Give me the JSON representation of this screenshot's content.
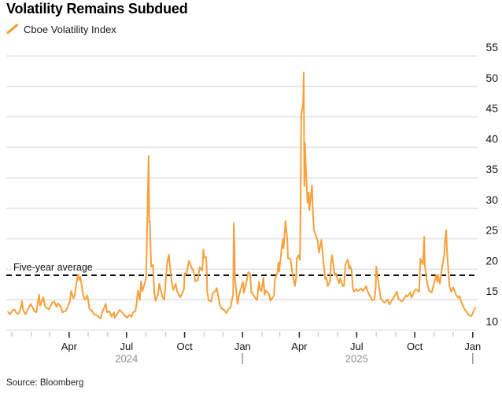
{
  "header": {
    "title": "Volatility Remains Subdued",
    "legend_label": "Cboe Volatility Index"
  },
  "footer": {
    "source": "Source: Bloomberg"
  },
  "colors": {
    "line": "#f7a03c",
    "grid": "#e5e5e5",
    "axis_text": "#161616",
    "year_text": "#8f8f8f",
    "tick_minor": "#cbcbcb",
    "tick_major": "#333333",
    "separator": "#9a9a9a",
    "average_line": "#111111"
  },
  "chart_data": {
    "type": "line",
    "title": "Volatility Remains Subdued",
    "legend": [
      "Cboe Volatility Index"
    ],
    "legend_position": "top-left",
    "y_axis_side": "right",
    "grid": "horizontal",
    "ylim": [
      10,
      55
    ],
    "yticks": [
      10,
      15,
      20,
      25,
      30,
      35,
      40,
      45,
      50,
      55
    ],
    "xticks": [
      {
        "date": "2024-04-01",
        "label": "Apr"
      },
      {
        "date": "2024-07-01",
        "label": "Jul"
      },
      {
        "date": "2024-10-01",
        "label": "Oct"
      },
      {
        "date": "2025-01-01",
        "label": "Jan"
      },
      {
        "date": "2025-04-01",
        "label": "Apr"
      },
      {
        "date": "2025-07-01",
        "label": "Jul"
      },
      {
        "date": "2025-10-01",
        "label": "Oct"
      },
      {
        "date": "2026-01-01",
        "label": "Jan"
      }
    ],
    "year_labels": [
      {
        "date": "2024-07-01",
        "label": "2024"
      },
      {
        "date": "2025-07-01",
        "label": "2025"
      }
    ],
    "year_separators": [
      "2025-01-01",
      "2026-01-01"
    ],
    "average_line": {
      "label": "Five-year average",
      "value": 19
    },
    "series": [
      {
        "name": "Cboe Volatility Index",
        "color": "#f7a03c",
        "points": [
          [
            "2023-12-26",
            13.0
          ],
          [
            "2023-12-29",
            12.6
          ],
          [
            "2024-01-02",
            13.2
          ],
          [
            "2024-01-05",
            13.4
          ],
          [
            "2024-01-09",
            12.7
          ],
          [
            "2024-01-12",
            12.7
          ],
          [
            "2024-01-16",
            13.9
          ],
          [
            "2024-01-17",
            14.8
          ],
          [
            "2024-01-19",
            13.3
          ],
          [
            "2024-01-23",
            12.6
          ],
          [
            "2024-01-26",
            13.3
          ],
          [
            "2024-01-31",
            14.3
          ],
          [
            "2024-02-02",
            13.9
          ],
          [
            "2024-02-06",
            13.1
          ],
          [
            "2024-02-09",
            12.9
          ],
          [
            "2024-02-13",
            15.8
          ],
          [
            "2024-02-15",
            14.0
          ],
          [
            "2024-02-20",
            15.4
          ],
          [
            "2024-02-23",
            13.8
          ],
          [
            "2024-02-29",
            13.4
          ],
          [
            "2024-03-05",
            14.5
          ],
          [
            "2024-03-08",
            14.7
          ],
          [
            "2024-03-12",
            13.8
          ],
          [
            "2024-03-14",
            14.4
          ],
          [
            "2024-03-19",
            13.8
          ],
          [
            "2024-03-21",
            12.9
          ],
          [
            "2024-03-27",
            13.2
          ],
          [
            "2024-04-02",
            14.6
          ],
          [
            "2024-04-04",
            16.4
          ],
          [
            "2024-04-08",
            15.2
          ],
          [
            "2024-04-10",
            15.8
          ],
          [
            "2024-04-12",
            17.3
          ],
          [
            "2024-04-15",
            19.2
          ],
          [
            "2024-04-17",
            18.2
          ],
          [
            "2024-04-19",
            18.7
          ],
          [
            "2024-04-23",
            15.7
          ],
          [
            "2024-04-26",
            15.0
          ],
          [
            "2024-04-30",
            15.7
          ],
          [
            "2024-05-03",
            13.5
          ],
          [
            "2024-05-07",
            13.2
          ],
          [
            "2024-05-10",
            12.6
          ],
          [
            "2024-05-15",
            12.4
          ],
          [
            "2024-05-21",
            11.9
          ],
          [
            "2024-05-23",
            12.8
          ],
          [
            "2024-05-29",
            14.3
          ],
          [
            "2024-05-31",
            12.9
          ],
          [
            "2024-06-04",
            13.1
          ],
          [
            "2024-06-07",
            12.2
          ],
          [
            "2024-06-11",
            12.9
          ],
          [
            "2024-06-12",
            12.0
          ],
          [
            "2024-06-17",
            12.8
          ],
          [
            "2024-06-20",
            13.3
          ],
          [
            "2024-06-25",
            12.8
          ],
          [
            "2024-06-28",
            12.4
          ],
          [
            "2024-07-02",
            12.0
          ],
          [
            "2024-07-05",
            12.5
          ],
          [
            "2024-07-09",
            12.2
          ],
          [
            "2024-07-11",
            12.9
          ],
          [
            "2024-07-15",
            13.1
          ],
          [
            "2024-07-17",
            14.5
          ],
          [
            "2024-07-19",
            16.5
          ],
          [
            "2024-07-22",
            14.9
          ],
          [
            "2024-07-24",
            18.0
          ],
          [
            "2024-07-26",
            16.4
          ],
          [
            "2024-07-30",
            17.7
          ],
          [
            "2024-08-01",
            18.6
          ],
          [
            "2024-08-02",
            23.4
          ],
          [
            "2024-08-05",
            38.6
          ],
          [
            "2024-08-06",
            27.7
          ],
          [
            "2024-08-07",
            27.9
          ],
          [
            "2024-08-08",
            23.8
          ],
          [
            "2024-08-09",
            20.4
          ],
          [
            "2024-08-12",
            20.7
          ],
          [
            "2024-08-13",
            18.1
          ],
          [
            "2024-08-14",
            16.2
          ],
          [
            "2024-08-16",
            14.8
          ],
          [
            "2024-08-20",
            15.9
          ],
          [
            "2024-08-22",
            17.6
          ],
          [
            "2024-08-27",
            15.4
          ],
          [
            "2024-08-30",
            15.0
          ],
          [
            "2024-09-03",
            20.7
          ],
          [
            "2024-09-06",
            22.4
          ],
          [
            "2024-09-09",
            19.4
          ],
          [
            "2024-09-11",
            17.7
          ],
          [
            "2024-09-13",
            16.6
          ],
          [
            "2024-09-17",
            17.6
          ],
          [
            "2024-09-19",
            16.4
          ],
          [
            "2024-09-24",
            15.4
          ],
          [
            "2024-09-27",
            16.0
          ],
          [
            "2024-09-30",
            16.7
          ],
          [
            "2024-10-01",
            19.3
          ],
          [
            "2024-10-04",
            19.2
          ],
          [
            "2024-10-08",
            21.4
          ],
          [
            "2024-10-11",
            20.5
          ],
          [
            "2024-10-15",
            19.7
          ],
          [
            "2024-10-18",
            18.0
          ],
          [
            "2024-10-22",
            18.2
          ],
          [
            "2024-10-25",
            20.3
          ],
          [
            "2024-10-29",
            19.8
          ],
          [
            "2024-10-31",
            23.2
          ],
          [
            "2024-11-01",
            21.9
          ],
          [
            "2024-11-04",
            22.0
          ],
          [
            "2024-11-05",
            20.5
          ],
          [
            "2024-11-06",
            16.3
          ],
          [
            "2024-11-08",
            14.9
          ],
          [
            "2024-11-12",
            14.7
          ],
          [
            "2024-11-15",
            16.1
          ],
          [
            "2024-11-19",
            16.4
          ],
          [
            "2024-11-21",
            16.9
          ],
          [
            "2024-11-26",
            14.1
          ],
          [
            "2024-11-29",
            13.5
          ],
          [
            "2024-12-03",
            13.3
          ],
          [
            "2024-12-06",
            12.8
          ],
          [
            "2024-12-11",
            13.6
          ],
          [
            "2024-12-13",
            13.8
          ],
          [
            "2024-12-17",
            15.9
          ],
          [
            "2024-12-18",
            27.6
          ],
          [
            "2024-12-19",
            24.1
          ],
          [
            "2024-12-20",
            18.4
          ],
          [
            "2024-12-24",
            14.3
          ],
          [
            "2024-12-27",
            16.0
          ],
          [
            "2024-12-31",
            17.4
          ],
          [
            "2025-01-02",
            17.9
          ],
          [
            "2025-01-03",
            16.1
          ],
          [
            "2025-01-07",
            17.8
          ],
          [
            "2025-01-10",
            19.5
          ],
          [
            "2025-01-13",
            19.2
          ],
          [
            "2025-01-15",
            16.1
          ],
          [
            "2025-01-17",
            16.0
          ],
          [
            "2025-01-22",
            15.1
          ],
          [
            "2025-01-24",
            14.9
          ],
          [
            "2025-01-27",
            17.9
          ],
          [
            "2025-01-29",
            16.6
          ],
          [
            "2025-01-31",
            16.4
          ],
          [
            "2025-02-03",
            18.6
          ],
          [
            "2025-02-05",
            15.8
          ],
          [
            "2025-02-07",
            16.5
          ],
          [
            "2025-02-12",
            15.9
          ],
          [
            "2025-02-14",
            14.8
          ],
          [
            "2025-02-18",
            15.4
          ],
          [
            "2025-02-20",
            15.7
          ],
          [
            "2025-02-21",
            18.2
          ],
          [
            "2025-02-25",
            19.4
          ],
          [
            "2025-02-27",
            21.1
          ],
          [
            "2025-02-28",
            19.6
          ],
          [
            "2025-03-04",
            23.5
          ],
          [
            "2025-03-06",
            24.9
          ],
          [
            "2025-03-07",
            23.4
          ],
          [
            "2025-03-10",
            27.9
          ],
          [
            "2025-03-11",
            26.9
          ],
          [
            "2025-03-13",
            24.7
          ],
          [
            "2025-03-14",
            21.8
          ],
          [
            "2025-03-18",
            21.7
          ],
          [
            "2025-03-21",
            19.3
          ],
          [
            "2025-03-25",
            17.2
          ],
          [
            "2025-03-27",
            18.7
          ],
          [
            "2025-03-28",
            21.7
          ],
          [
            "2025-03-31",
            22.3
          ],
          [
            "2025-04-02",
            21.5
          ],
          [
            "2025-04-03",
            30.0
          ],
          [
            "2025-04-04",
            45.3
          ],
          [
            "2025-04-07",
            47.0
          ],
          [
            "2025-04-08",
            52.3
          ],
          [
            "2025-04-09",
            33.6
          ],
          [
            "2025-04-10",
            40.7
          ],
          [
            "2025-04-11",
            37.6
          ],
          [
            "2025-04-14",
            30.9
          ],
          [
            "2025-04-16",
            32.6
          ],
          [
            "2025-04-17",
            29.7
          ],
          [
            "2025-04-21",
            33.8
          ],
          [
            "2025-04-22",
            30.6
          ],
          [
            "2025-04-24",
            26.5
          ],
          [
            "2025-04-28",
            25.2
          ],
          [
            "2025-04-30",
            24.7
          ],
          [
            "2025-05-02",
            22.7
          ],
          [
            "2025-05-06",
            24.8
          ],
          [
            "2025-05-08",
            22.5
          ],
          [
            "2025-05-12",
            18.4
          ],
          [
            "2025-05-14",
            18.6
          ],
          [
            "2025-05-16",
            17.2
          ],
          [
            "2025-05-20",
            18.1
          ],
          [
            "2025-05-21",
            20.9
          ],
          [
            "2025-05-23",
            22.3
          ],
          [
            "2025-05-27",
            19.0
          ],
          [
            "2025-05-29",
            19.3
          ],
          [
            "2025-06-03",
            17.7
          ],
          [
            "2025-06-05",
            18.5
          ],
          [
            "2025-06-09",
            17.2
          ],
          [
            "2025-06-11",
            17.3
          ],
          [
            "2025-06-13",
            20.8
          ],
          [
            "2025-06-17",
            21.6
          ],
          [
            "2025-06-19",
            20.1
          ],
          [
            "2025-06-20",
            20.6
          ],
          [
            "2025-06-23",
            19.8
          ],
          [
            "2025-06-25",
            16.8
          ],
          [
            "2025-06-27",
            16.3
          ],
          [
            "2025-06-30",
            16.7
          ],
          [
            "2025-07-03",
            16.4
          ],
          [
            "2025-07-08",
            16.8
          ],
          [
            "2025-07-11",
            16.4
          ],
          [
            "2025-07-16",
            17.2
          ],
          [
            "2025-07-18",
            16.4
          ],
          [
            "2025-07-23",
            15.4
          ],
          [
            "2025-07-25",
            14.9
          ],
          [
            "2025-07-29",
            15.0
          ],
          [
            "2025-07-31",
            16.7
          ],
          [
            "2025-08-01",
            20.4
          ],
          [
            "2025-08-05",
            17.5
          ],
          [
            "2025-08-08",
            15.2
          ],
          [
            "2025-08-12",
            14.7
          ],
          [
            "2025-08-14",
            14.5
          ],
          [
            "2025-08-19",
            15.0
          ],
          [
            "2025-08-22",
            14.2
          ],
          [
            "2025-08-26",
            14.9
          ],
          [
            "2025-08-29",
            15.4
          ],
          [
            "2025-09-03",
            16.3
          ],
          [
            "2025-09-05",
            15.2
          ],
          [
            "2025-09-10",
            14.7
          ],
          [
            "2025-09-12",
            14.8
          ],
          [
            "2025-09-17",
            15.7
          ],
          [
            "2025-09-19",
            15.5
          ],
          [
            "2025-09-24",
            16.2
          ],
          [
            "2025-09-26",
            15.3
          ],
          [
            "2025-09-30",
            16.3
          ],
          [
            "2025-10-03",
            16.7
          ],
          [
            "2025-10-08",
            16.3
          ],
          [
            "2025-10-10",
            21.7
          ],
          [
            "2025-10-14",
            20.8
          ],
          [
            "2025-10-16",
            25.3
          ],
          [
            "2025-10-17",
            20.8
          ],
          [
            "2025-10-20",
            18.2
          ],
          [
            "2025-10-22",
            17.2
          ],
          [
            "2025-10-24",
            16.4
          ],
          [
            "2025-10-28",
            16.2
          ],
          [
            "2025-10-31",
            17.4
          ],
          [
            "2025-11-04",
            19.0
          ],
          [
            "2025-11-06",
            17.9
          ],
          [
            "2025-11-07",
            19.1
          ],
          [
            "2025-11-10",
            17.6
          ],
          [
            "2025-11-13",
            20.0
          ],
          [
            "2025-11-17",
            22.4
          ],
          [
            "2025-11-18",
            24.7
          ],
          [
            "2025-11-20",
            26.4
          ],
          [
            "2025-11-21",
            23.4
          ],
          [
            "2025-11-24",
            18.9
          ],
          [
            "2025-11-25",
            17.2
          ],
          [
            "2025-11-28",
            16.3
          ],
          [
            "2025-12-01",
            17.0
          ],
          [
            "2025-12-03",
            16.5
          ],
          [
            "2025-12-05",
            15.9
          ],
          [
            "2025-12-09",
            15.3
          ],
          [
            "2025-12-11",
            15.6
          ],
          [
            "2025-12-15",
            14.3
          ],
          [
            "2025-12-17",
            13.9
          ],
          [
            "2025-12-19",
            13.4
          ],
          [
            "2025-12-23",
            12.9
          ],
          [
            "2025-12-26",
            12.4
          ],
          [
            "2025-12-30",
            12.3
          ],
          [
            "2026-01-02",
            13.0
          ],
          [
            "2026-01-05",
            13.7
          ]
        ]
      }
    ]
  }
}
